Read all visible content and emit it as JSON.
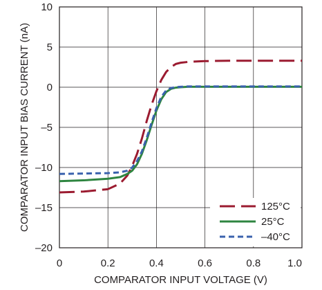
{
  "chart_data": {
    "type": "line",
    "xlabel": "COMPARATOR INPUT VOLTAGE (V)",
    "ylabel": "COMPARATOR INPUT BIAS CURRENT (nA)",
    "xlim": [
      0,
      1.0
    ],
    "ylim": [
      -20,
      10
    ],
    "x_ticks": [
      0,
      0.2,
      0.4,
      0.6,
      0.8,
      1.0
    ],
    "x_tick_labels": [
      "0",
      "0.2",
      "0.4",
      "0.6",
      "0.8",
      "1.0"
    ],
    "y_ticks": [
      -20,
      -15,
      -10,
      -5,
      0,
      5,
      10
    ],
    "y_tick_labels": [
      "–20",
      "–15",
      "–10",
      "–5",
      "0",
      "5",
      "10"
    ],
    "grid": true,
    "legend_position": "bottom-right",
    "series": [
      {
        "name": "125°C",
        "color": "#9b1b30",
        "dash": "long-dash",
        "x": [
          0,
          0.1,
          0.2,
          0.25,
          0.28,
          0.3,
          0.32,
          0.34,
          0.36,
          0.38,
          0.4,
          0.42,
          0.44,
          0.46,
          0.48,
          0.5,
          0.53,
          0.56,
          0.6,
          0.7,
          0.8,
          0.9,
          1.0
        ],
        "y": [
          -13.1,
          -13.0,
          -12.7,
          -12.0,
          -11.0,
          -9.8,
          -8.3,
          -6.4,
          -4.2,
          -2.2,
          -0.5,
          0.9,
          1.9,
          2.5,
          2.9,
          3.05,
          3.15,
          3.2,
          3.25,
          3.3,
          3.3,
          3.3,
          3.3
        ]
      },
      {
        "name": "25°C",
        "color": "#2e8540",
        "dash": "solid",
        "x": [
          0,
          0.1,
          0.2,
          0.25,
          0.28,
          0.3,
          0.32,
          0.34,
          0.36,
          0.38,
          0.4,
          0.42,
          0.44,
          0.46,
          0.48,
          0.5,
          0.53,
          0.56,
          0.6,
          0.7,
          0.8,
          0.9,
          1.0
        ],
        "y": [
          -11.7,
          -11.6,
          -11.4,
          -11.2,
          -10.8,
          -10.4,
          -9.6,
          -8.3,
          -6.6,
          -4.7,
          -2.9,
          -1.5,
          -0.6,
          -0.2,
          -0.05,
          0.0,
          0.05,
          0.05,
          0.05,
          0.05,
          0.05,
          0.05,
          0.05
        ]
      },
      {
        "name": "–40°C",
        "color": "#3a62ad",
        "dash": "short-dash",
        "x": [
          0,
          0.1,
          0.2,
          0.25,
          0.28,
          0.3,
          0.32,
          0.34,
          0.36,
          0.38,
          0.4,
          0.42,
          0.44,
          0.46,
          0.48,
          0.5,
          0.53,
          0.56,
          0.6,
          0.7,
          0.8,
          0.9,
          1.0
        ],
        "y": [
          -10.8,
          -10.75,
          -10.7,
          -10.6,
          -10.4,
          -10.0,
          -9.2,
          -8.0,
          -6.3,
          -4.4,
          -2.6,
          -1.2,
          -0.4,
          -0.1,
          0.0,
          0.05,
          0.1,
          0.1,
          0.1,
          0.1,
          0.1,
          0.1,
          0.1
        ]
      }
    ]
  }
}
